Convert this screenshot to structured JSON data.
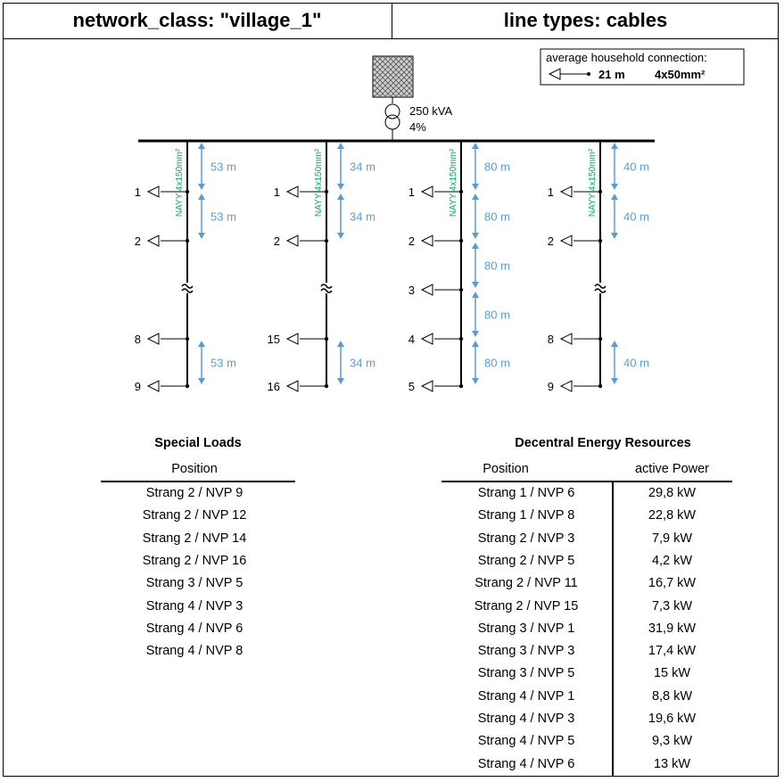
{
  "header": {
    "network_class": "network_class: \"village_1\"",
    "line_types": "line types: cables"
  },
  "legend": {
    "title": "average household connection:",
    "length": "21 m",
    "cable": "4x50mm²"
  },
  "transformer": {
    "power": "250 kVA",
    "impedance": "4%"
  },
  "strands": [
    {
      "cable": "NAYY 4x150mm²",
      "nodes": [
        {
          "label": "1",
          "row": 1
        },
        {
          "label": "2",
          "row": 2
        },
        {
          "label": "8",
          "row": 5
        },
        {
          "label": "9",
          "row": 6
        }
      ],
      "segments": [
        {
          "label": "53 m",
          "from_row": 0,
          "to_row": 1
        },
        {
          "label": "53 m",
          "from_row": 1,
          "to_row": 2
        },
        {
          "label": "53 m",
          "from_row": 5,
          "to_row": 6
        }
      ],
      "break_row": 3.5
    },
    {
      "cable": "NAYY 4x150mm²",
      "nodes": [
        {
          "label": "1",
          "row": 1
        },
        {
          "label": "2",
          "row": 2
        },
        {
          "label": "15",
          "row": 5
        },
        {
          "label": "16",
          "row": 6
        }
      ],
      "segments": [
        {
          "label": "34 m",
          "from_row": 0,
          "to_row": 1
        },
        {
          "label": "34 m",
          "from_row": 1,
          "to_row": 2
        },
        {
          "label": "34 m",
          "from_row": 5,
          "to_row": 6
        }
      ],
      "break_row": 3.5
    },
    {
      "cable": "NAYY 4x150mm²",
      "nodes": [
        {
          "label": "1",
          "row": 1
        },
        {
          "label": "2",
          "row": 2
        },
        {
          "label": "3",
          "row": 3
        },
        {
          "label": "4",
          "row": 5
        },
        {
          "label": "5",
          "row": 6
        }
      ],
      "segments": [
        {
          "label": "80 m",
          "from_row": 0,
          "to_row": 1
        },
        {
          "label": "80 m",
          "from_row": 1,
          "to_row": 2
        },
        {
          "label": "80 m",
          "from_row": 2,
          "to_row": 3
        },
        {
          "label": "80 m",
          "from_row": 3,
          "to_row": 5
        },
        {
          "label": "80 m",
          "from_row": 5,
          "to_row": 6
        }
      ],
      "break_row": null
    },
    {
      "cable": "NAYY 4x150mm²",
      "nodes": [
        {
          "label": "1",
          "row": 1
        },
        {
          "label": "2",
          "row": 2
        },
        {
          "label": "8",
          "row": 5
        },
        {
          "label": "9",
          "row": 6
        }
      ],
      "segments": [
        {
          "label": "40 m",
          "from_row": 0,
          "to_row": 1
        },
        {
          "label": "40 m",
          "from_row": 1,
          "to_row": 2
        },
        {
          "label": "40 m",
          "from_row": 5,
          "to_row": 6
        }
      ],
      "break_row": 3.5
    }
  ],
  "special_loads": {
    "title": "Special Loads",
    "column": "Position",
    "rows": [
      "Strang 2 / NVP 9",
      "Strang 2 / NVP 12",
      "Strang 2 / NVP 14",
      "Strang 2 / NVP 16",
      "Strang 3 / NVP 5",
      "Strang 4 / NVP 3",
      "Strang 4 / NVP 6",
      "Strang 4 / NVP 8"
    ]
  },
  "der": {
    "title": "Decentral Energy Resources",
    "columns": [
      "Position",
      "active Power"
    ],
    "rows": [
      [
        "Strang 1 / NVP 6",
        "29,8 kW"
      ],
      [
        "Strang 1 / NVP 8",
        "22,8 kW"
      ],
      [
        "Strang 2 / NVP 3",
        "7,9 kW"
      ],
      [
        "Strang 2 / NVP 5",
        "4,2 kW"
      ],
      [
        "Strang 2 / NVP 11",
        "16,7 kW"
      ],
      [
        "Strang 2 / NVP 15",
        "7,3 kW"
      ],
      [
        "Strang 3 / NVP 1",
        "31,9 kW"
      ],
      [
        "Strang 3 / NVP 3",
        "17,4 kW"
      ],
      [
        "Strang 3 / NVP 5",
        "15 kW"
      ],
      [
        "Strang 4 / NVP 1",
        "8,8 kW"
      ],
      [
        "Strang 4 / NVP 3",
        "19,6 kW"
      ],
      [
        "Strang 4 / NVP 5",
        "9,3 kW"
      ],
      [
        "Strang 4 / NVP 6",
        "13 kW"
      ]
    ]
  },
  "colors": {
    "line": "#000000",
    "dimension": "#5B9BD5",
    "cable_label": "#00B050",
    "substation": "#C8C8C8"
  }
}
